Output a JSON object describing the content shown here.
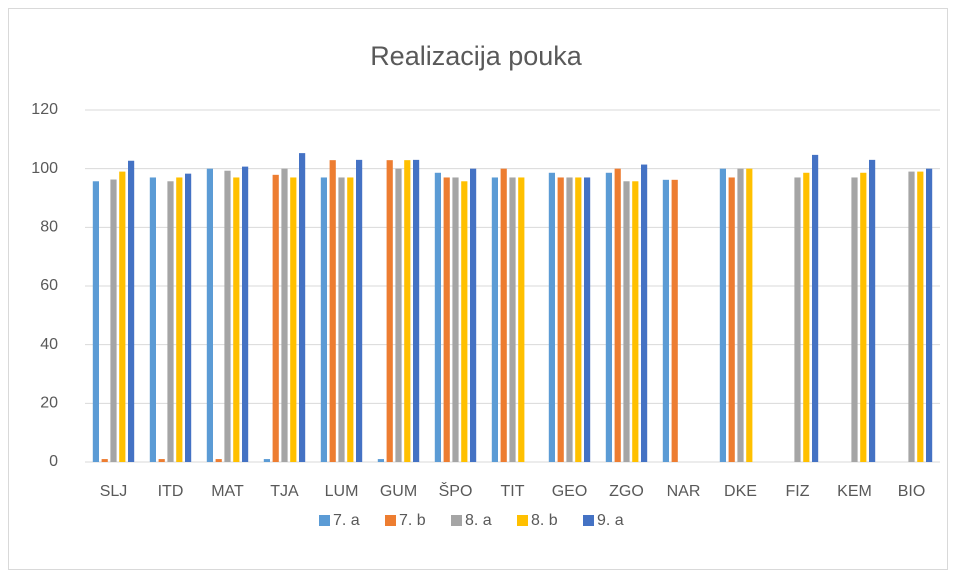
{
  "chart_data": {
    "type": "bar",
    "title": "Realizacija pouka",
    "categories": [
      "SLJ",
      "ITD",
      "MAT",
      "TJA",
      "LUM",
      "GUM",
      "ŠPO",
      "TIT",
      "GEO",
      "ZGO",
      "NAR",
      "DKE",
      "FIZ",
      "KEM",
      "BIO"
    ],
    "series": [
      {
        "name": "7. a",
        "color": "#5b9bd5",
        "values": [
          95.7,
          97,
          100,
          1,
          97,
          1,
          98.6,
          97,
          98.6,
          98.6,
          96.2,
          100,
          null,
          null,
          null
        ]
      },
      {
        "name": "7. b",
        "color": "#ed7d31",
        "values": [
          1,
          1,
          1,
          97.9,
          102.9,
          102.9,
          97,
          100,
          97,
          100,
          96.2,
          97,
          null,
          null,
          null
        ]
      },
      {
        "name": "8. a",
        "color": "#a5a5a5",
        "values": [
          96.3,
          95.7,
          99.3,
          100,
          97,
          100,
          97,
          97,
          97,
          95.7,
          null,
          100,
          97,
          97,
          99
        ]
      },
      {
        "name": "8. b",
        "color": "#ffc000",
        "values": [
          99,
          97,
          97,
          97,
          97,
          102.9,
          95.7,
          97,
          97,
          95.7,
          null,
          100,
          98.6,
          98.6,
          99
        ]
      },
      {
        "name": "9. a",
        "color": "#4472c4",
        "values": [
          102.7,
          98.3,
          100.7,
          105.3,
          103,
          103,
          100,
          null,
          97,
          101.4,
          null,
          null,
          104.7,
          103,
          100
        ]
      }
    ],
    "ylim": [
      0,
      120
    ],
    "yticks": [
      0,
      20,
      40,
      60,
      80,
      100,
      120
    ],
    "grid": true,
    "legend": "bottom"
  }
}
